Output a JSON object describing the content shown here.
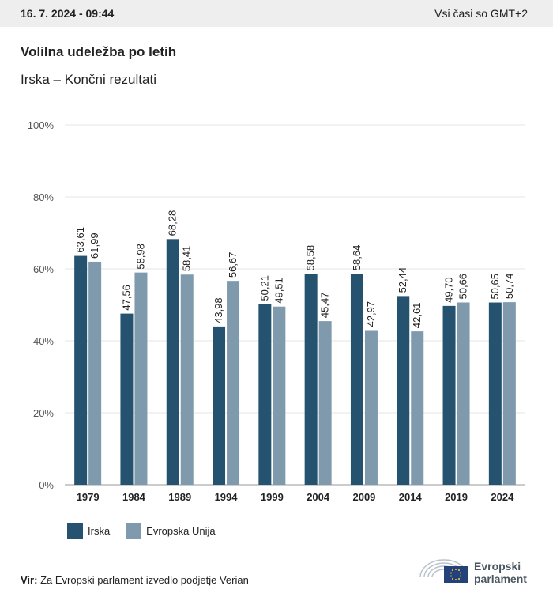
{
  "header": {
    "datetime": "16. 7. 2024 - 09:44",
    "timezone_note": "Vsi časi so GMT+2"
  },
  "title": "Volilna udeležba po letih",
  "subtitle": "Irska – Končni rezultati",
  "colors": {
    "irska": "#24526f",
    "eu": "#7f9aad",
    "grid": "#e6e6e6",
    "axis": "#999999"
  },
  "chart_data": {
    "type": "bar",
    "categories": [
      "1979",
      "1984",
      "1989",
      "1994",
      "1999",
      "2004",
      "2009",
      "2014",
      "2019",
      "2024"
    ],
    "series": [
      {
        "name": "Irska",
        "values": [
          63.61,
          47.56,
          68.28,
          43.98,
          50.21,
          58.58,
          58.64,
          52.44,
          49.7,
          50.65
        ],
        "labels": [
          "63,61",
          "47,56",
          "68,28",
          "43,98",
          "50,21",
          "58,58",
          "58,64",
          "52,44",
          "49,70",
          "50,65"
        ]
      },
      {
        "name": "Evropska Unija",
        "values": [
          61.99,
          58.98,
          58.41,
          56.67,
          49.51,
          45.47,
          42.97,
          42.61,
          50.66,
          50.74
        ],
        "labels": [
          "61,99",
          "58,98",
          "58,41",
          "56,67",
          "49,51",
          "45,47",
          "42,97",
          "42,61",
          "50,66",
          "50,74"
        ]
      }
    ],
    "yticks": [
      "0%",
      "20%",
      "40%",
      "60%",
      "80%",
      "100%"
    ],
    "ylim": [
      0,
      100
    ],
    "grid": true,
    "legend_position": "bottom-left"
  },
  "source": {
    "label": "Vir:",
    "text": "Za Evropski parlament izvedlo podjetje Verian"
  },
  "logo": {
    "line1": "Evropski",
    "line2": "parlament"
  }
}
